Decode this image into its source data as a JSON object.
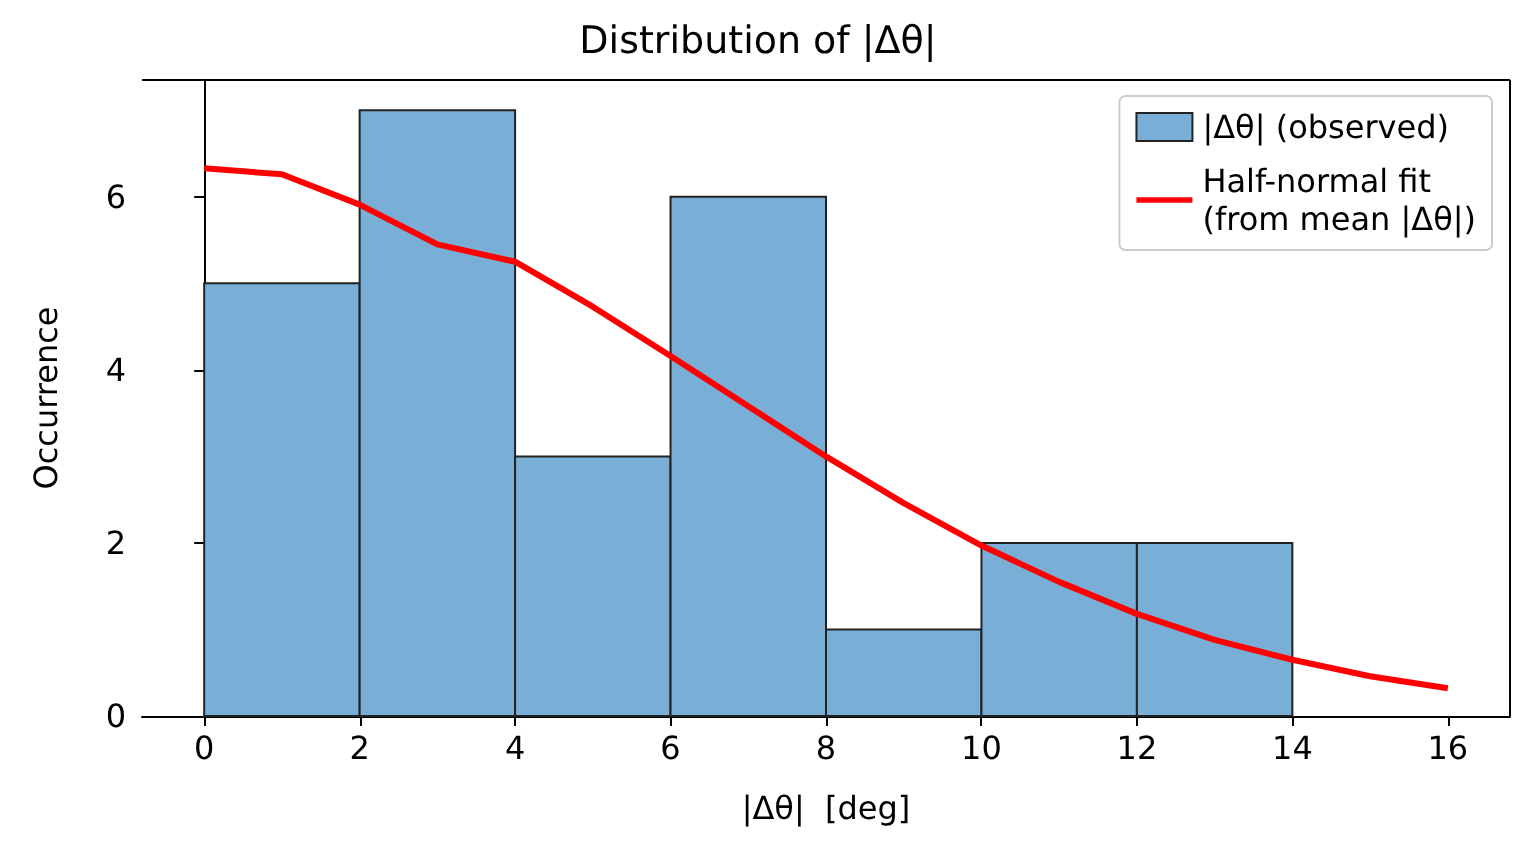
{
  "chart_data": {
    "type": "histogram",
    "title": "Distribution of |Δθ|",
    "xlabel": "|Δθ|  [deg]",
    "ylabel": "Occurrence",
    "series": [
      {
        "name": "|Δθ| (observed)",
        "color": "#79aed6",
        "bins": [
          0,
          2,
          4,
          6,
          8,
          10,
          12,
          14
        ],
        "values": [
          5,
          7,
          3,
          6,
          1,
          2,
          2
        ]
      },
      {
        "type": "line",
        "name": "Half-normal fit\n(from mean |Δθ|)",
        "color": "#ff0000",
        "x": [
          0,
          1,
          2,
          3,
          4,
          5,
          6,
          7,
          8,
          9,
          10,
          11,
          12,
          13,
          14,
          15,
          16
        ],
        "values": [
          6.33,
          6.26,
          5.91,
          5.45,
          5.25,
          4.73,
          4.16,
          3.58,
          3.0,
          2.46,
          1.97,
          1.55,
          1.18,
          0.88,
          0.65,
          0.46,
          0.32
        ]
      }
    ],
    "xlim": [
      -0.8,
      16.8
    ],
    "xticks": [
      0,
      2,
      4,
      6,
      8,
      10,
      12,
      14,
      16
    ],
    "ylim": [
      0,
      7.35
    ],
    "yticks": [
      0,
      2,
      4,
      6
    ],
    "legend": "top right",
    "grid": false,
    "marker": "none",
    "line_style": "solid"
  }
}
